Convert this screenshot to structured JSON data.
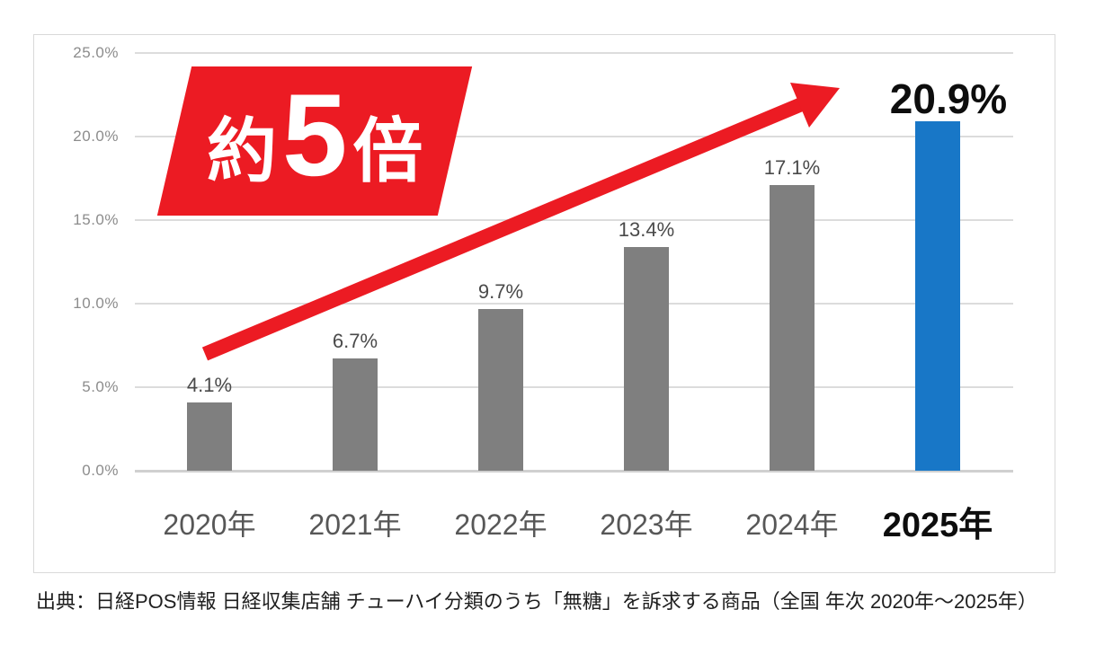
{
  "chart": {
    "source": "出典：日経POS情報 日経収集店舗 チューハイ分類のうち「無糖」を訴求する商品（全国 年次 2020年～2025年）"
  },
  "chart_data": {
    "type": "bar",
    "title": "",
    "xlabel": "",
    "ylabel": "",
    "categories": [
      "2020年",
      "2021年",
      "2022年",
      "2023年",
      "2024年",
      "2025年"
    ],
    "values": [
      4.1,
      6.7,
      9.7,
      13.4,
      17.1,
      20.9
    ],
    "data_labels": [
      "4.1%",
      "6.7%",
      "9.7%",
      "13.4%",
      "17.1%",
      "20.9%"
    ],
    "highlight_index": 5,
    "ylim": [
      0,
      25
    ],
    "yticks": [
      0,
      5,
      10,
      15,
      20,
      25
    ],
    "ytick_labels": [
      "0.0%",
      "5.0%",
      "10.0%",
      "15.0%",
      "20.0%",
      "25.0%"
    ],
    "grid": true,
    "legend": null,
    "annotation_banner": {
      "prefix": "約",
      "big": "5",
      "suffix": "倍"
    },
    "colors": {
      "bar": "#7f7f7f",
      "highlight": "#1877c7",
      "accent_red": "#ec1b23",
      "grid": "#dcdcdc",
      "tick_text": "#8c8c8c",
      "category_text": "#575757",
      "data_label_text": "#4a4a4a",
      "emphasis_text": "#0d0d0d"
    }
  }
}
